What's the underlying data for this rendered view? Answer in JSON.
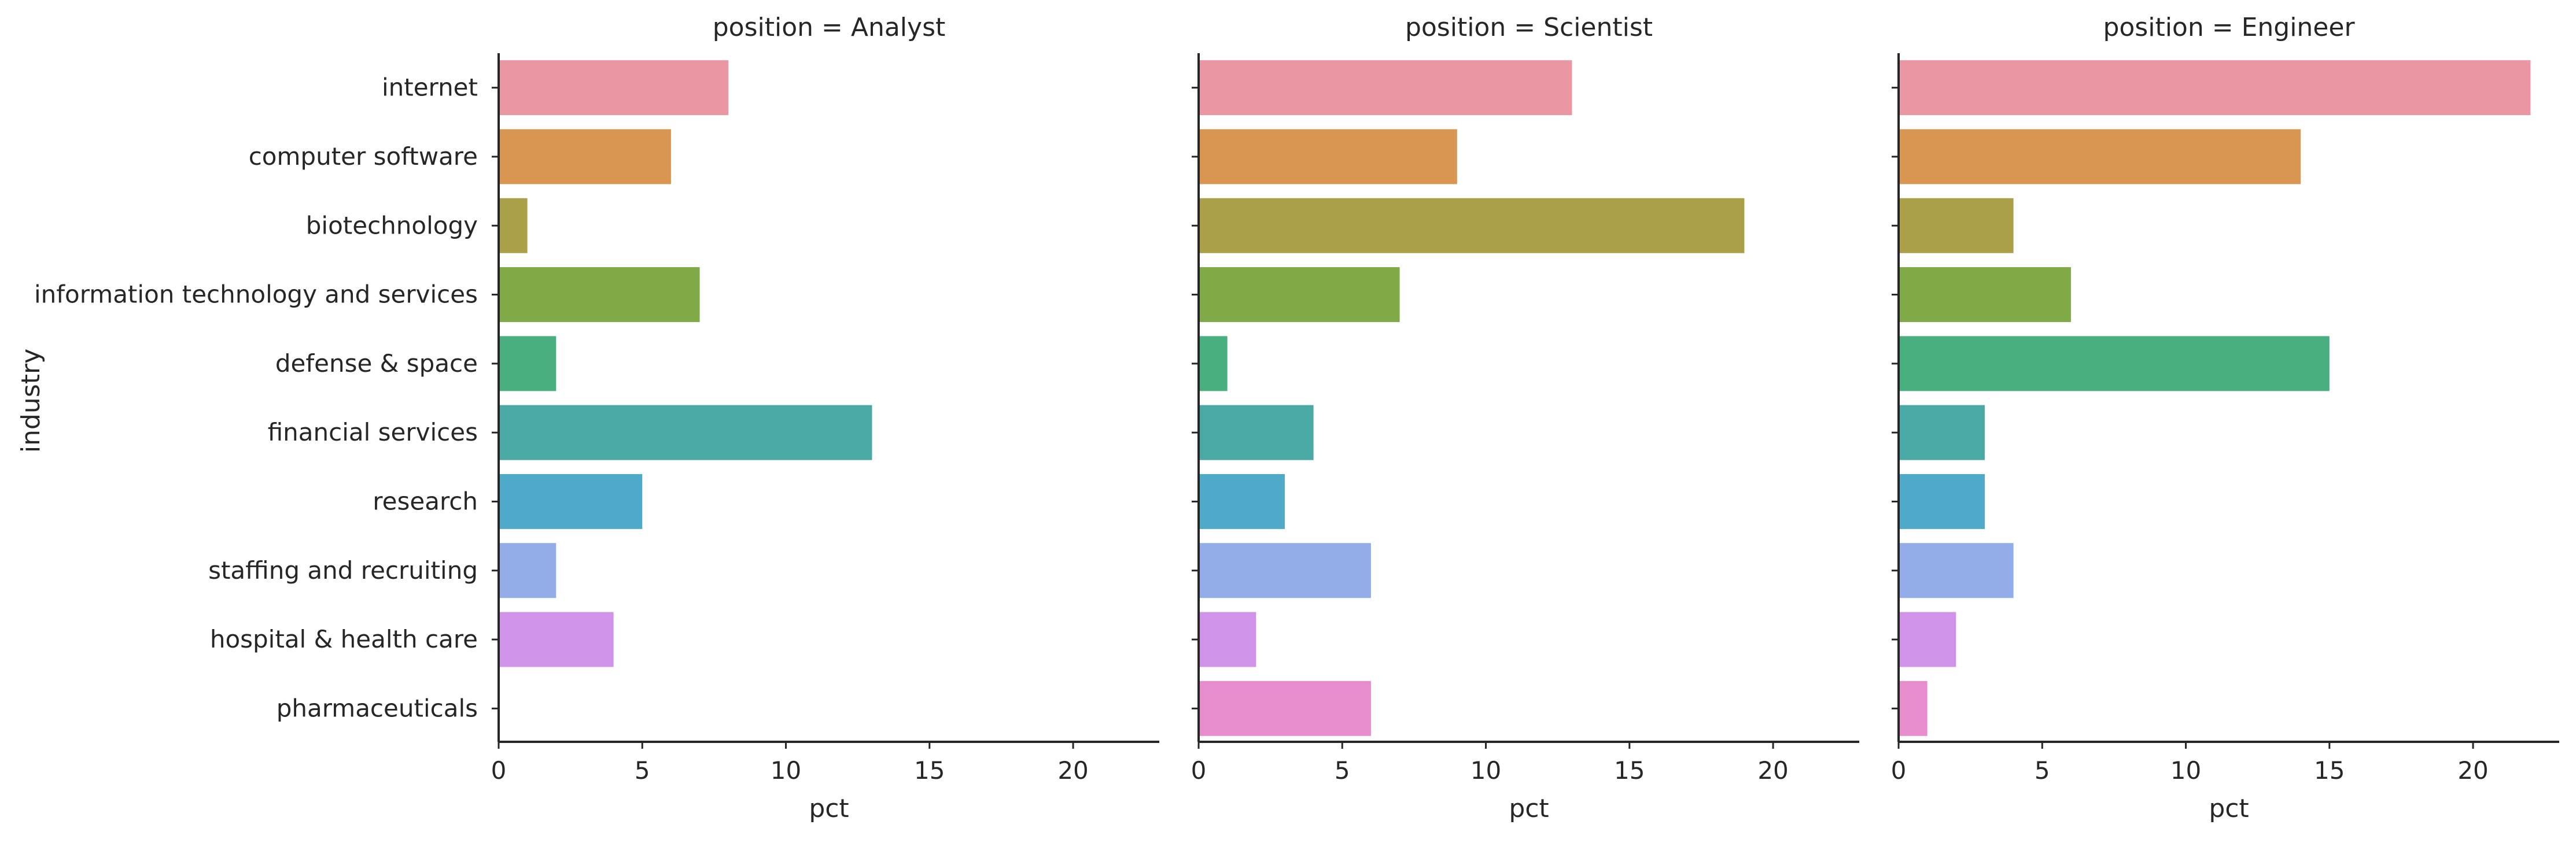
{
  "chart_data": {
    "type": "bar",
    "orientation": "horizontal",
    "facet_label": "position",
    "ylabel": "industry",
    "xlabel": "pct",
    "xlim": [
      0,
      23
    ],
    "xticks": [
      0,
      5,
      10,
      15,
      20
    ],
    "grid": false,
    "categories": [
      "internet",
      "computer software",
      "biotechnology",
      "information technology and services",
      "defense & space",
      "financial services",
      "research",
      "staffing and recruiting",
      "hospital & health care",
      "pharmaceuticals"
    ],
    "colors": [
      "#ea96a3",
      "#d99651",
      "#aba048",
      "#80a947",
      "#49af7e",
      "#4ba9a5",
      "#4faaca",
      "#93acea",
      "#d193ea",
      "#e88dcc"
    ],
    "facets": [
      {
        "title": "position = Analyst",
        "values": [
          8,
          6,
          1,
          7,
          2,
          13,
          5,
          2,
          4,
          0
        ]
      },
      {
        "title": "position = Scientist",
        "values": [
          13,
          9,
          19,
          7,
          1,
          4,
          3,
          6,
          2,
          6
        ]
      },
      {
        "title": "position = Engineer",
        "values": [
          22,
          14,
          4,
          6,
          15,
          3,
          3,
          4,
          2,
          1
        ]
      }
    ]
  }
}
